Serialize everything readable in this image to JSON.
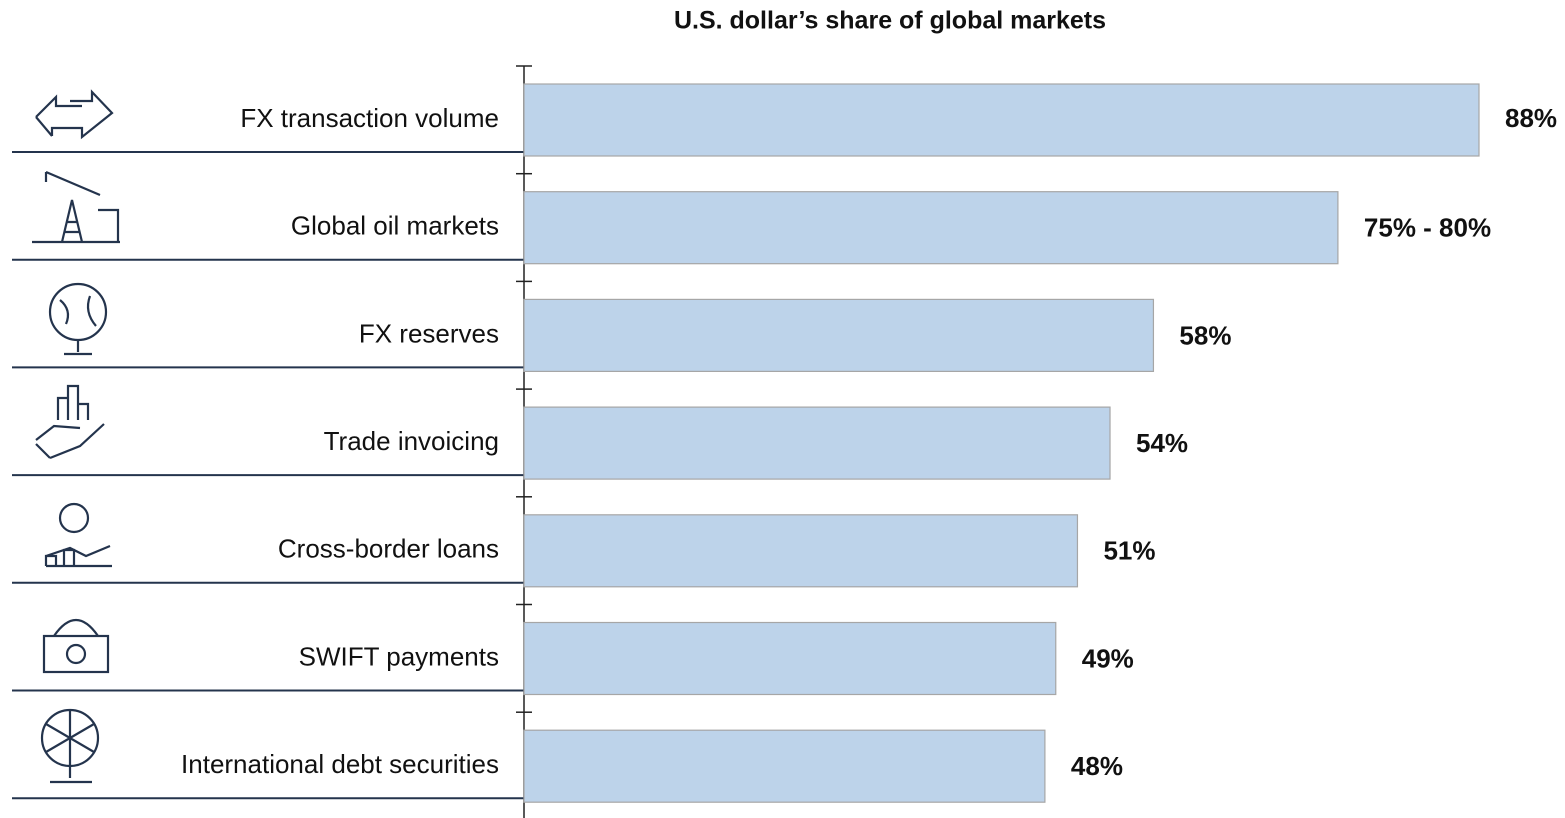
{
  "chart_data": {
    "type": "bar",
    "orientation": "horizontal",
    "title": "U.S. dollar’s share of global markets",
    "categories": [
      "FX transaction volume",
      "Global oil markets",
      "FX reserves",
      "Trade invoicing",
      "Cross-border loans",
      "SWIFT payments",
      "International debt securities"
    ],
    "values": [
      88,
      75,
      58,
      54,
      51,
      49,
      48
    ],
    "value_labels": [
      "88%",
      "75% - 80%",
      "58%",
      "54%",
      "51%",
      "49%",
      "48%"
    ],
    "color": "#bdd3ea"
  }
}
